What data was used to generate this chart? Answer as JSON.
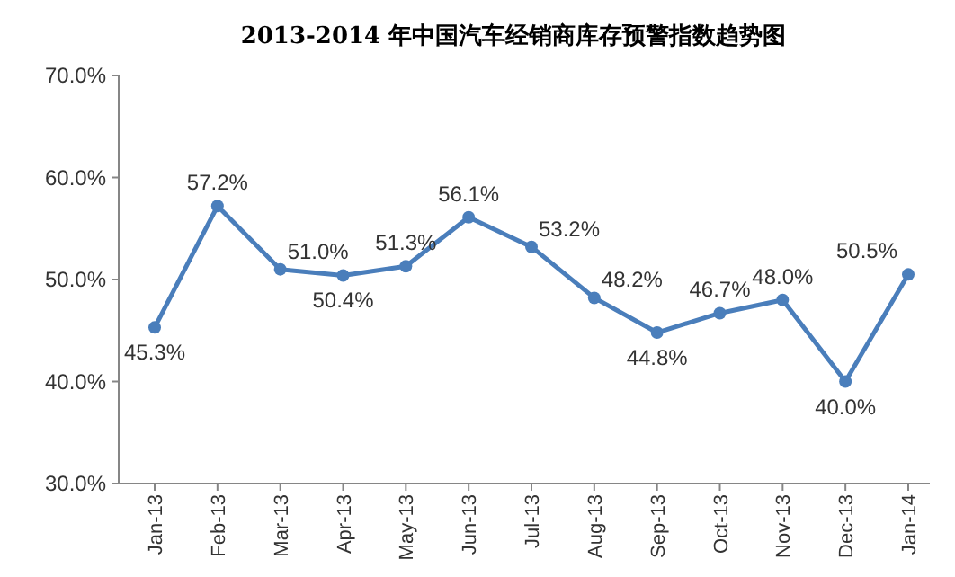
{
  "chart_data": {
    "type": "line",
    "title": "2013-2014 年中国汽车经销商库存预警指数趋势图",
    "categories": [
      "Jan-13",
      "Feb-13",
      "Mar-13",
      "Apr-13",
      "May-13",
      "Jun-13",
      "Jul-13",
      "Aug-13",
      "Sep-13",
      "Oct-13",
      "Nov-13",
      "Dec-13",
      "Jan-14"
    ],
    "series": [
      {
        "color": "#4a7ebb",
        "values": [
          45.3,
          57.2,
          51.0,
          50.4,
          51.3,
          56.1,
          53.2,
          48.2,
          44.8,
          46.7,
          48.0,
          40.0,
          50.5
        ],
        "value_labels": [
          "45.3%",
          "57.2%",
          "51.0%",
          "50.4%",
          "51.3%",
          "56.1%",
          "53.2%",
          "48.2%",
          "44.8%",
          "46.7%",
          "48.0%",
          "40.0%",
          "50.5%"
        ]
      }
    ],
    "ylim": [
      30,
      70
    ],
    "yticks": [
      {
        "value": 30,
        "label": "30.0%"
      },
      {
        "value": 40,
        "label": "40.0%"
      },
      {
        "value": 50,
        "label": "50.0%"
      },
      {
        "value": 60,
        "label": "60.0%"
      },
      {
        "value": 70,
        "label": "70.0%"
      }
    ],
    "grid": false,
    "marker": "circle",
    "line_style": "solid"
  }
}
